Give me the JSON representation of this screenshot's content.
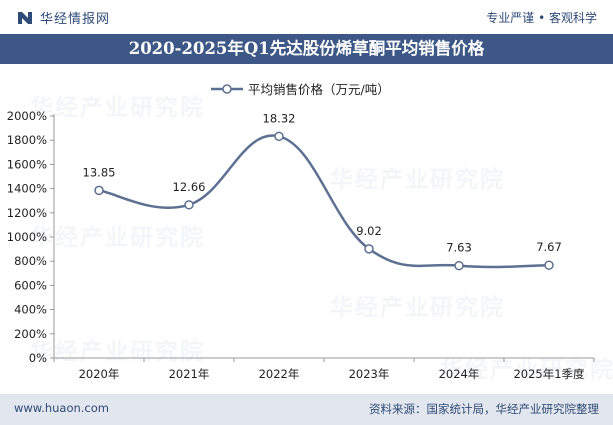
{
  "header": {
    "brand": "华经情报网",
    "slogan": "专业严谨 • 客观科学"
  },
  "watermark_text": "华经产业研究院",
  "footer": {
    "url": "www.huaon.com",
    "source": "资料来源：国家统计局，华经产业研究院整理"
  },
  "colors": {
    "title_bar": "#3d5886",
    "line": "#5d7092",
    "footer_bg": "#e2e6ee"
  },
  "chart_data": {
    "type": "line",
    "title": "2020-2025年Q1先达股份烯草酮平均销售价格",
    "categories": [
      "2020年",
      "2021年",
      "2022年",
      "2023年",
      "2024年",
      "2025年1季度"
    ],
    "series": [
      {
        "name": "平均销售价格（万元/吨）",
        "values": [
          13.85,
          12.66,
          18.32,
          9.02,
          7.63,
          7.67
        ]
      }
    ],
    "data_labels": [
      "13.85",
      "12.66",
      "18.32",
      "9.02",
      "7.63",
      "7.67"
    ],
    "yticks": [
      "0%",
      "200%",
      "400%",
      "600%",
      "800%",
      "1000%",
      "1200%",
      "1400%",
      "1600%",
      "1800%",
      "2000%"
    ],
    "ylim": [
      0,
      20
    ],
    "grid": false,
    "smooth": true,
    "legend_position": "top"
  }
}
